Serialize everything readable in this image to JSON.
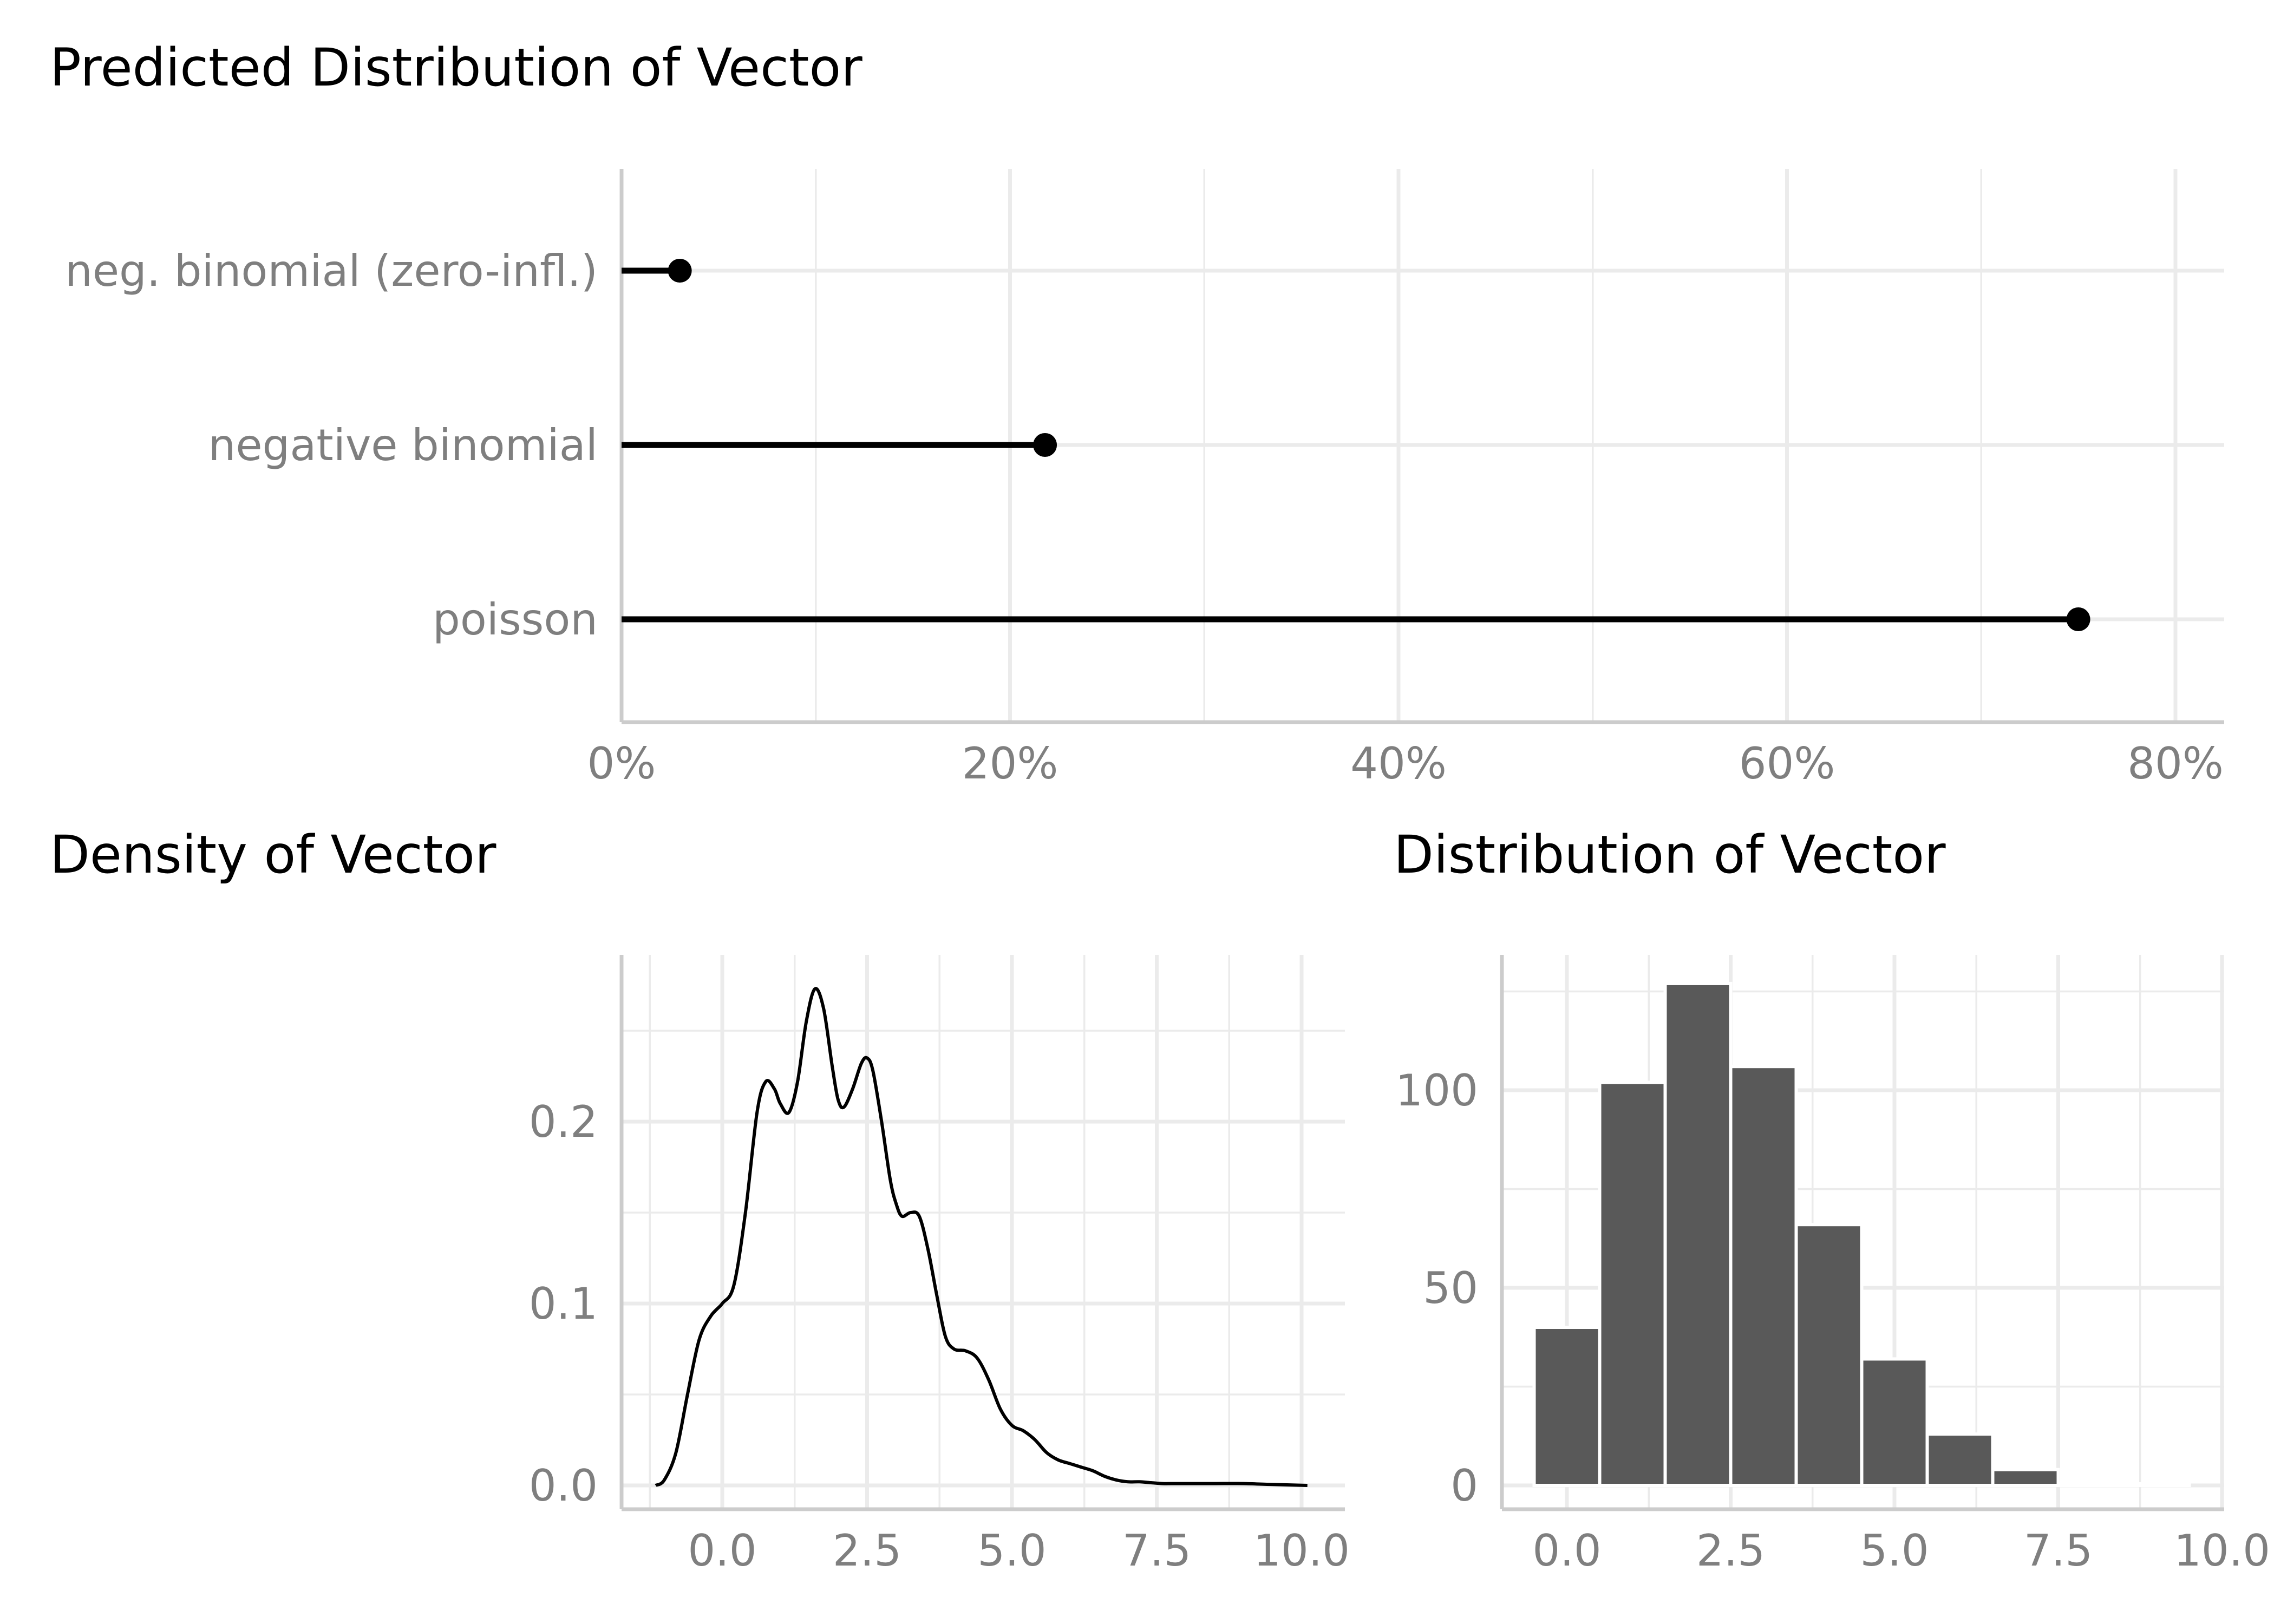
{
  "chart_data": [
    {
      "type": "lollipop",
      "title": "Predicted Distribution of Vector",
      "xlabel": "",
      "ylabel": "",
      "xlim": [
        0,
        0.82
      ],
      "x_ticks": [
        0,
        0.2,
        0.4,
        0.6,
        0.8
      ],
      "x_tick_labels": [
        "0%",
        "20%",
        "40%",
        "60%",
        "80%"
      ],
      "categories": [
        "neg. binomial (zero-infl.)",
        "negative binomial",
        "poisson"
      ],
      "values": [
        0.03,
        0.218,
        0.75
      ],
      "grid": true
    },
    {
      "type": "line",
      "title": "Density of Vector",
      "xlabel": "",
      "ylabel": "",
      "xlim": [
        -1.5,
        10.6
      ],
      "ylim": [
        -0.012,
        0.29
      ],
      "x_ticks": [
        0,
        2.5,
        5,
        7.5,
        10
      ],
      "x_tick_labels": [
        "0.0",
        "2.5",
        "5.0",
        "7.5",
        "10.0"
      ],
      "y_ticks": [
        0,
        0.1,
        0.2
      ],
      "y_tick_labels": [
        "0.0",
        "0.1",
        "0.2"
      ],
      "x": [
        -1.15,
        -1.0,
        -0.8,
        -0.6,
        -0.4,
        -0.2,
        0.0,
        0.2,
        0.4,
        0.6,
        0.75,
        0.9,
        1.0,
        1.15,
        1.3,
        1.45,
        1.6,
        1.75,
        1.9,
        2.0,
        2.1,
        2.25,
        2.4,
        2.5,
        2.6,
        2.75,
        2.9,
        3.0,
        3.1,
        3.25,
        3.4,
        3.55,
        3.7,
        3.85,
        4.0,
        4.2,
        4.4,
        4.6,
        4.8,
        5.0,
        5.2,
        5.4,
        5.6,
        5.8,
        6.0,
        6.2,
        6.4,
        6.6,
        6.8,
        7.0,
        7.2,
        7.4,
        7.6,
        7.8,
        8.0,
        8.5,
        9.0,
        9.5,
        10.1
      ],
      "y": [
        0.0,
        0.003,
        0.018,
        0.05,
        0.08,
        0.093,
        0.1,
        0.11,
        0.15,
        0.205,
        0.222,
        0.218,
        0.21,
        0.205,
        0.222,
        0.255,
        0.273,
        0.262,
        0.23,
        0.212,
        0.208,
        0.218,
        0.232,
        0.235,
        0.228,
        0.2,
        0.168,
        0.155,
        0.148,
        0.15,
        0.148,
        0.13,
        0.105,
        0.082,
        0.075,
        0.074,
        0.07,
        0.058,
        0.042,
        0.033,
        0.03,
        0.025,
        0.018,
        0.014,
        0.012,
        0.01,
        0.008,
        0.005,
        0.003,
        0.002,
        0.002,
        0.0015,
        0.001,
        0.001,
        0.001,
        0.001,
        0.001,
        0.0005,
        0.0
      ]
    },
    {
      "type": "bar",
      "title": "Distribution of Vector",
      "xlabel": "",
      "ylabel": "",
      "xlim": [
        -1.0,
        10.0
      ],
      "ylim": [
        -6,
        129
      ],
      "x_ticks": [
        0,
        2.5,
        5,
        7.5,
        10
      ],
      "x_tick_labels": [
        "0.0",
        "2.5",
        "5.0",
        "7.5",
        "10.0"
      ],
      "y_ticks": [
        0,
        50,
        100
      ],
      "y_tick_labels": [
        "0",
        "50",
        "100"
      ],
      "categories": [
        0,
        1,
        2,
        3,
        4,
        5,
        6,
        7,
        8,
        9
      ],
      "values": [
        40,
        102,
        127,
        106,
        66,
        32,
        13,
        4,
        0,
        0
      ],
      "bar_color": "#595959"
    }
  ]
}
